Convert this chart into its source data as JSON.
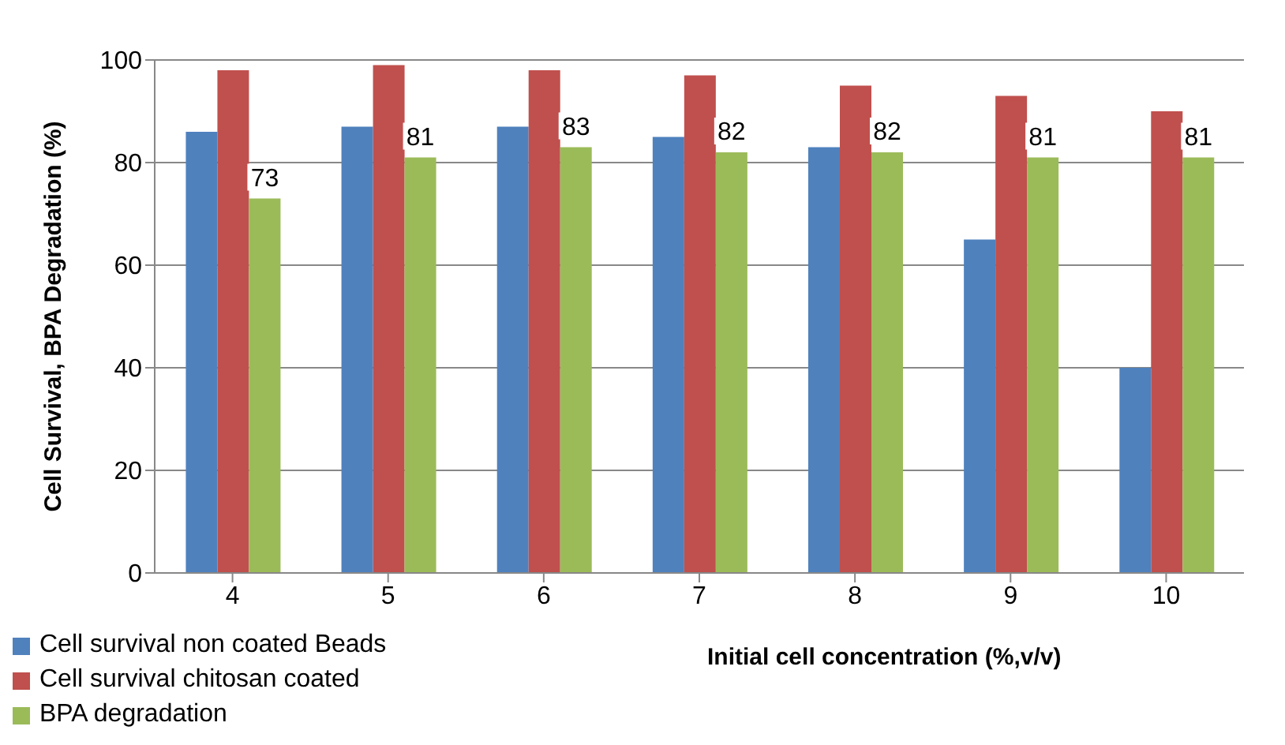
{
  "chart_data": {
    "type": "bar",
    "xlabel": "Initial cell concentration (%,v/v)",
    "ylabel": "Cell Survival, BPA Degradation (%)",
    "categories": [
      "4",
      "5",
      "6",
      "7",
      "8",
      "9",
      "10"
    ],
    "series": [
      {
        "name": "Cell survival non coated Beads",
        "color": "#4f81bd",
        "values": [
          86,
          87,
          87,
          85,
          83,
          65,
          40
        ]
      },
      {
        "name": "Cell survival chitosan coated",
        "color": "#c0504d",
        "values": [
          98,
          99,
          98,
          97,
          95,
          93,
          90
        ]
      },
      {
        "name": "BPA degradation",
        "color": "#9bbb59",
        "values": [
          73,
          81,
          83,
          82,
          82,
          81,
          81
        ],
        "value_labels": [
          "73",
          "81",
          "83",
          "82",
          "82",
          "81",
          "81"
        ]
      }
    ],
    "ylim": [
      0,
      100
    ],
    "yticks": [
      0,
      20,
      40,
      60,
      80,
      100
    ],
    "grid": "y",
    "legend": "bottom left"
  }
}
